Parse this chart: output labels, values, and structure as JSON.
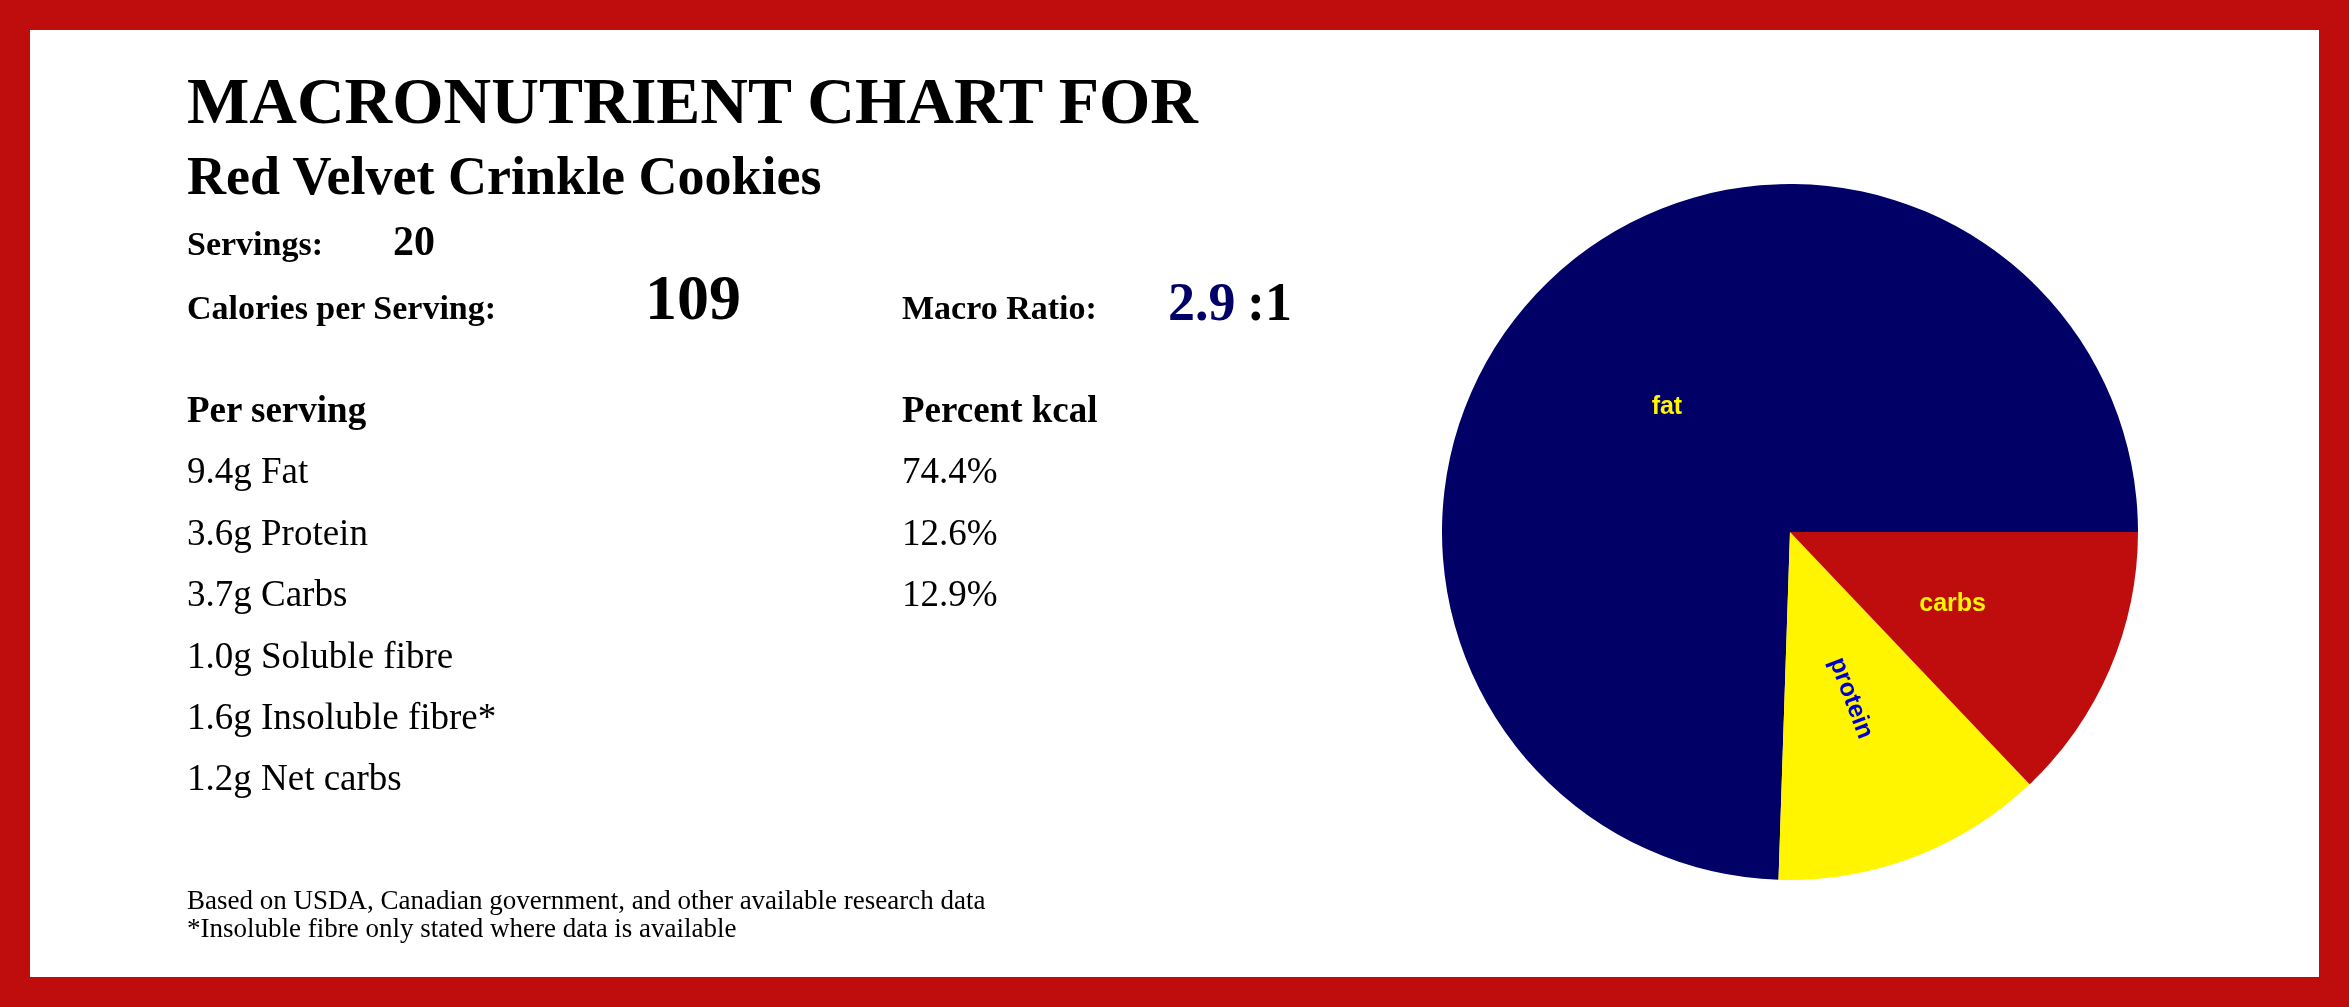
{
  "chart_data": [
    {
      "type": "other",
      "title": "MACRONUTRIENT CHART FOR",
      "subtitle": "Red Velvet Crinkle Cookies",
      "annotations": [
        "Servings:",
        "20",
        "Calories per Serving:",
        "109",
        "Macro Ratio:",
        "2.9",
        ":1",
        "Per serving",
        "Percent kcal",
        "9.4g Fat",
        "3.6g Protein",
        "3.7g Carbs",
        "1.0g Soluble fibre",
        "1.6g Insoluble fibre*",
        "1.2g Net carbs",
        "74.4%",
        "12.6%",
        "12.9%",
        "Based on USDA, Canadian government, and other available research data",
        "*Insoluble fibre only stated where data is available"
      ]
    },
    {
      "type": "pie",
      "categories": [
        "fat",
        "protein",
        "carbs"
      ],
      "values": [
        74.4,
        12.6,
        12.9
      ],
      "colors": [
        "#000066",
        "#fff500",
        "#bf0d0d"
      ]
    }
  ]
}
